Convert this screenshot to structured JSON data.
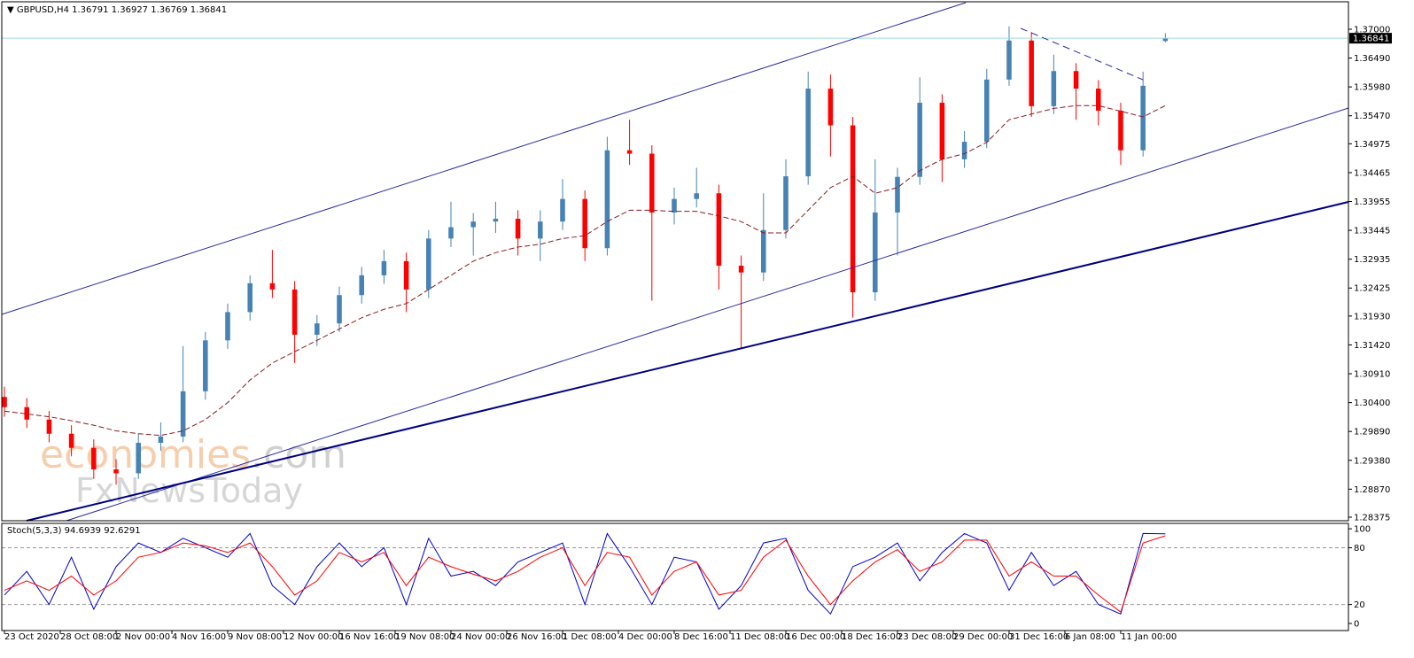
{
  "chart_data": [
    {
      "type": "candlestick",
      "title": "GBPUSD,H4",
      "xlim": [
        -0.12,
        60.2
      ],
      "ylim": [
        1.28312,
        1.37485
      ],
      "yticks": [
        {
          "value": 1.37,
          "label": "1.37000"
        },
        {
          "value": 1.3649,
          "label": "1.36490"
        },
        {
          "value": 1.3598,
          "label": "1.35980"
        },
        {
          "value": 1.3547,
          "label": "1.35470"
        },
        {
          "value": 1.34975,
          "label": "1.34975"
        },
        {
          "value": 1.34465,
          "label": "1.34465"
        },
        {
          "value": 1.33955,
          "label": "1.33955"
        },
        {
          "value": 1.33445,
          "label": "1.33445"
        },
        {
          "value": 1.32935,
          "label": "1.32935"
        },
        {
          "value": 1.32425,
          "label": "1.32425"
        },
        {
          "value": 1.3193,
          "label": "1.31930"
        },
        {
          "value": 1.3142,
          "label": "1.31420"
        },
        {
          "value": 1.3091,
          "label": "1.30910"
        },
        {
          "value": 1.304,
          "label": "1.30400"
        },
        {
          "value": 1.2989,
          "label": "1.29890"
        },
        {
          "value": 1.2938,
          "label": "1.29380"
        },
        {
          "value": 1.2887,
          "label": "1.28870"
        },
        {
          "value": 1.28375,
          "label": "1.28375"
        }
      ],
      "up_color": "#4682b4",
      "down_color": "#ff0000",
      "open": [
        1.305,
        1.3032,
        1.301,
        1.2985,
        1.296,
        1.2922,
        1.2915,
        1.2969,
        1.298,
        1.306,
        1.315,
        1.32,
        1.3251,
        1.324,
        1.316,
        1.318,
        1.323,
        1.3265,
        1.329,
        1.324,
        1.333,
        1.335,
        1.336,
        1.3365,
        1.333,
        1.336,
        1.34,
        1.3313,
        1.3486,
        1.348,
        1.3376,
        1.34,
        1.341,
        1.3282,
        1.327,
        1.3345,
        1.344,
        1.3595,
        1.353,
        1.3235,
        1.3376,
        1.3439,
        1.357,
        1.347,
        1.3501,
        1.3611,
        1.368,
        1.3564,
        1.3626,
        1.3595,
        1.3556,
        1.3486,
        1.36791
      ],
      "high": [
        1.3068,
        1.3048,
        1.3025,
        1.3,
        1.2975,
        1.294,
        1.2985,
        1.3005,
        1.314,
        1.3165,
        1.3215,
        1.3265,
        1.331,
        1.3255,
        1.3195,
        1.3245,
        1.328,
        1.331,
        1.3305,
        1.3345,
        1.3395,
        1.3375,
        1.3395,
        1.338,
        1.338,
        1.3435,
        1.3415,
        1.351,
        1.354,
        1.3495,
        1.342,
        1.3455,
        1.3425,
        1.33,
        1.341,
        1.347,
        1.3625,
        1.362,
        1.3545,
        1.347,
        1.3455,
        1.3615,
        1.3585,
        1.352,
        1.363,
        1.3705,
        1.3695,
        1.3655,
        1.364,
        1.361,
        1.357,
        1.3625,
        1.36927
      ],
      "low": [
        1.3015,
        1.2995,
        1.297,
        1.2945,
        1.2905,
        1.2895,
        1.2905,
        1.2955,
        1.297,
        1.3045,
        1.3135,
        1.3185,
        1.3225,
        1.311,
        1.314,
        1.3165,
        1.3215,
        1.325,
        1.32,
        1.3225,
        1.3315,
        1.33,
        1.334,
        1.33,
        1.329,
        1.3345,
        1.329,
        1.33,
        1.346,
        1.322,
        1.3355,
        1.3385,
        1.324,
        1.3135,
        1.3255,
        1.333,
        1.3425,
        1.3475,
        1.319,
        1.322,
        1.33,
        1.3425,
        1.343,
        1.3455,
        1.349,
        1.36,
        1.3545,
        1.355,
        1.354,
        1.353,
        1.346,
        1.3475,
        1.36769
      ],
      "close": [
        1.3032,
        1.301,
        1.2985,
        1.296,
        1.2922,
        1.2915,
        1.2969,
        1.298,
        1.306,
        1.315,
        1.32,
        1.3251,
        1.324,
        1.316,
        1.318,
        1.323,
        1.3265,
        1.329,
        1.324,
        1.333,
        1.335,
        1.336,
        1.3365,
        1.333,
        1.336,
        1.34,
        1.3313,
        1.3486,
        1.348,
        1.3376,
        1.34,
        1.341,
        1.3282,
        1.327,
        1.3345,
        1.344,
        1.3595,
        1.353,
        1.3235,
        1.3376,
        1.3439,
        1.357,
        1.347,
        1.3501,
        1.3611,
        1.368,
        1.3564,
        1.3626,
        1.3595,
        1.3556,
        1.3486,
        1.36,
        1.36841
      ],
      "moving_average": {
        "color": "#8b1a1a",
        "values": [
          1.3025,
          1.302,
          1.3015,
          1.3008,
          1.3,
          1.299,
          1.2985,
          1.2982,
          1.299,
          1.301,
          1.304,
          1.308,
          1.311,
          1.313,
          1.315,
          1.317,
          1.319,
          1.3205,
          1.3215,
          1.324,
          1.3265,
          1.329,
          1.3305,
          1.3315,
          1.332,
          1.333,
          1.3335,
          1.336,
          1.338,
          1.338,
          1.3378,
          1.3378,
          1.337,
          1.336,
          1.334,
          1.334,
          1.338,
          1.342,
          1.344,
          1.341,
          1.342,
          1.345,
          1.347,
          1.348,
          1.35,
          1.354,
          1.355,
          1.356,
          1.3565,
          1.3565,
          1.3555,
          1.3545,
          1.3565
        ]
      },
      "price_line_color": "#9fd9e0",
      "watermark": [
        "economies",
        ".com",
        "FxNewsToday"
      ]
    },
    {
      "type": "line",
      "title": "Stoch(5,3,3)",
      "xlim": [
        -0.12,
        60.2
      ],
      "ylim": [
        -7.5,
        105.7
      ],
      "yticks": [
        100,
        80,
        20,
        0
      ],
      "levels": [
        80,
        20
      ],
      "xticks": [
        {
          "value": 0,
          "label": "23 Oct 2020"
        },
        {
          "value": 2.5,
          "label": "28 Oct 08:00"
        },
        {
          "value": 5,
          "label": "2 Nov 00:00"
        },
        {
          "value": 7.5,
          "label": "4 Nov 16:00"
        },
        {
          "value": 10,
          "label": "9 Nov 08:00"
        },
        {
          "value": 12.5,
          "label": "12 Nov 00:00"
        },
        {
          "value": 15,
          "label": "16 Nov 16:00"
        },
        {
          "value": 17.5,
          "label": "19 Nov 08:00"
        },
        {
          "value": 20,
          "label": "24 Nov 00:00"
        },
        {
          "value": 22.5,
          "label": "26 Nov 16:00"
        },
        {
          "value": 25,
          "label": "1 Dec 08:00"
        },
        {
          "value": 27.5,
          "label": "4 Dec 00:00"
        },
        {
          "value": 30,
          "label": "8 Dec 16:00"
        },
        {
          "value": 32.5,
          "label": "11 Dec 08:00"
        },
        {
          "value": 35,
          "label": "16 Dec 00:00"
        },
        {
          "value": 37.5,
          "label": "18 Dec 16:00"
        },
        {
          "value": 40,
          "label": "23 Dec 08:00"
        },
        {
          "value": 42.5,
          "label": "29 Dec 00:00"
        },
        {
          "value": 45,
          "label": "31 Dec 16:00"
        },
        {
          "value": 47.5,
          "label": "6 Jan 08:00"
        },
        {
          "value": 50,
          "label": "11 Jan 00:00"
        }
      ],
      "series": [
        {
          "color": "#0000cc",
          "values": [
            30,
            55,
            20,
            70,
            15,
            60,
            85,
            75,
            90,
            80,
            70,
            95,
            40,
            20,
            60,
            85,
            60,
            80,
            20,
            90,
            50,
            55,
            40,
            65,
            75,
            85,
            20,
            95,
            60,
            20,
            70,
            65,
            15,
            40,
            85,
            90,
            35,
            10,
            60,
            70,
            85,
            45,
            75,
            95,
            85,
            35,
            75,
            40,
            55,
            20,
            10,
            95,
            94.6939
          ]
        },
        {
          "color": "#ff0000",
          "values": [
            35,
            45,
            35,
            50,
            30,
            45,
            70,
            75,
            85,
            82,
            75,
            85,
            60,
            30,
            45,
            75,
            65,
            75,
            40,
            70,
            60,
            52,
            45,
            55,
            70,
            80,
            40,
            75,
            70,
            30,
            55,
            65,
            30,
            35,
            70,
            88,
            50,
            20,
            45,
            65,
            78,
            55,
            65,
            88,
            88,
            50,
            65,
            50,
            50,
            30,
            12,
            85,
            92.6291
          ]
        }
      ]
    }
  ]
}
